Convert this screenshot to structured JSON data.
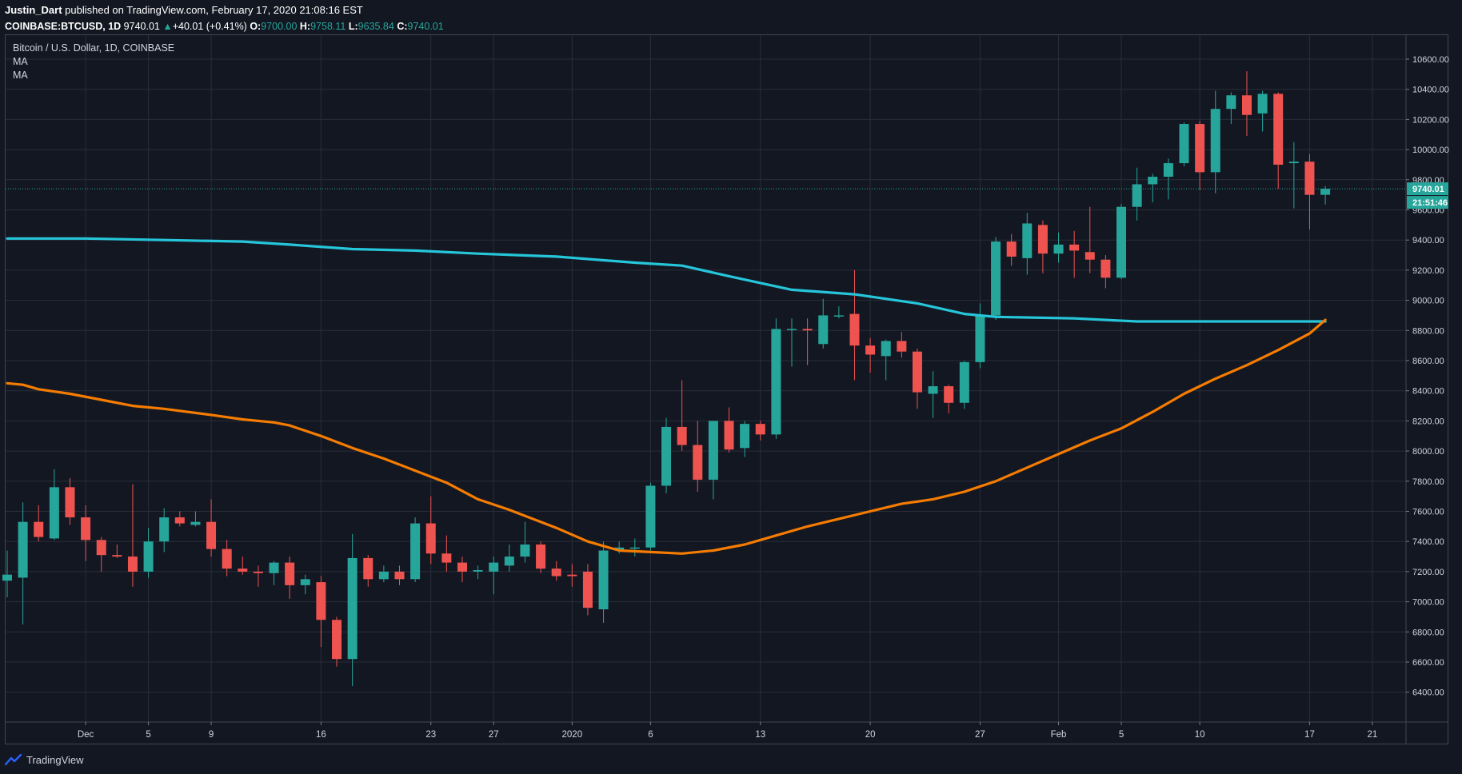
{
  "header": {
    "author": "Justin_Dart",
    "published_text": "published on TradingView.com, February 17, 2020 21:08:16 EST",
    "symbol": "COINBASE:BTCUSD",
    "interval": "1D",
    "last_price": "9740.01",
    "change_arrow": "▲",
    "change": "+40.01 (+0.41%)",
    "open_label": "O:",
    "open": "9700.00",
    "high_label": "H:",
    "high": "9758.11",
    "low_label": "L:",
    "low": "9635.84",
    "close_label": "C:",
    "close": "9740.01"
  },
  "legend": {
    "title": "Bitcoin / U.S. Dollar, 1D, COINBASE",
    "ma1": "MA",
    "ma2": "MA"
  },
  "footer": {
    "brand": "TradingView"
  },
  "colors": {
    "background": "#131722",
    "grid": "#2a2e39",
    "up": "#26a69a",
    "down": "#ef5350",
    "ma_slow": "#26c6da",
    "ma_fast": "#f57c00"
  },
  "chart_data": {
    "type": "candlestick",
    "symbol": "COINBASE:BTCUSD",
    "interval": "1D",
    "title": "Bitcoin / U.S. Dollar, 1D, COINBASE",
    "ylim": [
      6260,
      10700
    ],
    "y_ticks": [
      6400,
      6600,
      6800,
      7000,
      7200,
      7400,
      7600,
      7800,
      8000,
      8200,
      8400,
      8600,
      8800,
      9000,
      9200,
      9400,
      9600,
      9800,
      10000,
      10200,
      10400,
      10600
    ],
    "x_ticks": [
      {
        "label": "Dec",
        "index": 5
      },
      {
        "label": "5",
        "index": 9
      },
      {
        "label": "9",
        "index": 13
      },
      {
        "label": "16",
        "index": 20
      },
      {
        "label": "23",
        "index": 27
      },
      {
        "label": "27",
        "index": 31
      },
      {
        "label": "2020",
        "index": 36
      },
      {
        "label": "6",
        "index": 41
      },
      {
        "label": "13",
        "index": 48
      },
      {
        "label": "20",
        "index": 55
      },
      {
        "label": "27",
        "index": 62
      },
      {
        "label": "Feb",
        "index": 67
      },
      {
        "label": "5",
        "index": 71
      },
      {
        "label": "10",
        "index": 76
      },
      {
        "label": "17",
        "index": 83
      },
      {
        "label": "21",
        "index": 87
      }
    ],
    "last_price_label": "9740.01",
    "countdown_label": "21:51:46",
    "last_price": 9740.01,
    "candles": [
      {
        "o": 7140,
        "h": 7340,
        "l": 7030,
        "c": 7180
      },
      {
        "o": 7160,
        "h": 7660,
        "l": 6850,
        "c": 7530
      },
      {
        "o": 7530,
        "h": 7640,
        "l": 7400,
        "c": 7430
      },
      {
        "o": 7420,
        "h": 7880,
        "l": 7410,
        "c": 7760
      },
      {
        "o": 7760,
        "h": 7820,
        "l": 7510,
        "c": 7560
      },
      {
        "o": 7560,
        "h": 7640,
        "l": 7270,
        "c": 7410
      },
      {
        "o": 7410,
        "h": 7430,
        "l": 7200,
        "c": 7310
      },
      {
        "o": 7310,
        "h": 7380,
        "l": 7290,
        "c": 7300
      },
      {
        "o": 7300,
        "h": 7780,
        "l": 7100,
        "c": 7200
      },
      {
        "o": 7200,
        "h": 7490,
        "l": 7160,
        "c": 7400
      },
      {
        "o": 7400,
        "h": 7620,
        "l": 7330,
        "c": 7560
      },
      {
        "o": 7560,
        "h": 7600,
        "l": 7500,
        "c": 7520
      },
      {
        "o": 7510,
        "h": 7600,
        "l": 7500,
        "c": 7530
      },
      {
        "o": 7530,
        "h": 7680,
        "l": 7300,
        "c": 7350
      },
      {
        "o": 7350,
        "h": 7410,
        "l": 7170,
        "c": 7220
      },
      {
        "o": 7220,
        "h": 7300,
        "l": 7180,
        "c": 7200
      },
      {
        "o": 7200,
        "h": 7240,
        "l": 7100,
        "c": 7190
      },
      {
        "o": 7190,
        "h": 7270,
        "l": 7110,
        "c": 7260
      },
      {
        "o": 7260,
        "h": 7300,
        "l": 7020,
        "c": 7110
      },
      {
        "o": 7110,
        "h": 7180,
        "l": 7050,
        "c": 7150
      },
      {
        "o": 7130,
        "h": 7170,
        "l": 6700,
        "c": 6880
      },
      {
        "o": 6880,
        "h": 6900,
        "l": 6570,
        "c": 6620
      },
      {
        "o": 6620,
        "h": 7450,
        "l": 6440,
        "c": 7290
      },
      {
        "o": 7290,
        "h": 7310,
        "l": 7100,
        "c": 7150
      },
      {
        "o": 7150,
        "h": 7240,
        "l": 7130,
        "c": 7200
      },
      {
        "o": 7200,
        "h": 7240,
        "l": 7110,
        "c": 7150
      },
      {
        "o": 7150,
        "h": 7560,
        "l": 7130,
        "c": 7520
      },
      {
        "o": 7520,
        "h": 7700,
        "l": 7250,
        "c": 7320
      },
      {
        "o": 7320,
        "h": 7440,
        "l": 7200,
        "c": 7260
      },
      {
        "o": 7260,
        "h": 7300,
        "l": 7130,
        "c": 7200
      },
      {
        "o": 7200,
        "h": 7240,
        "l": 7150,
        "c": 7210
      },
      {
        "o": 7200,
        "h": 7300,
        "l": 7050,
        "c": 7260
      },
      {
        "o": 7240,
        "h": 7380,
        "l": 7200,
        "c": 7300
      },
      {
        "o": 7300,
        "h": 7530,
        "l": 7260,
        "c": 7380
      },
      {
        "o": 7380,
        "h": 7400,
        "l": 7190,
        "c": 7220
      },
      {
        "o": 7220,
        "h": 7270,
        "l": 7140,
        "c": 7170
      },
      {
        "o": 7180,
        "h": 7250,
        "l": 7100,
        "c": 7170
      },
      {
        "o": 7200,
        "h": 7250,
        "l": 6910,
        "c": 6960
      },
      {
        "o": 6950,
        "h": 7400,
        "l": 6860,
        "c": 7340
      },
      {
        "o": 7340,
        "h": 7400,
        "l": 7320,
        "c": 7360
      },
      {
        "o": 7360,
        "h": 7420,
        "l": 7300,
        "c": 7360
      },
      {
        "o": 7360,
        "h": 7790,
        "l": 7340,
        "c": 7770
      },
      {
        "o": 7770,
        "h": 8220,
        "l": 7720,
        "c": 8160
      },
      {
        "o": 8160,
        "h": 8470,
        "l": 8000,
        "c": 8040
      },
      {
        "o": 8040,
        "h": 8200,
        "l": 7730,
        "c": 7810
      },
      {
        "o": 7810,
        "h": 8200,
        "l": 7680,
        "c": 8200
      },
      {
        "o": 8200,
        "h": 8290,
        "l": 7990,
        "c": 8010
      },
      {
        "o": 8020,
        "h": 8200,
        "l": 7960,
        "c": 8180
      },
      {
        "o": 8180,
        "h": 8200,
        "l": 8070,
        "c": 8110
      },
      {
        "o": 8110,
        "h": 8880,
        "l": 8080,
        "c": 8810
      },
      {
        "o": 8810,
        "h": 8880,
        "l": 8560,
        "c": 8810
      },
      {
        "o": 8810,
        "h": 8880,
        "l": 8570,
        "c": 8800
      },
      {
        "o": 8710,
        "h": 9010,
        "l": 8680,
        "c": 8900
      },
      {
        "o": 8900,
        "h": 8960,
        "l": 8880,
        "c": 8900
      },
      {
        "o": 8910,
        "h": 9200,
        "l": 8470,
        "c": 8700
      },
      {
        "o": 8700,
        "h": 8750,
        "l": 8520,
        "c": 8640
      },
      {
        "o": 8630,
        "h": 8740,
        "l": 8470,
        "c": 8730
      },
      {
        "o": 8730,
        "h": 8790,
        "l": 8620,
        "c": 8660
      },
      {
        "o": 8660,
        "h": 8680,
        "l": 8280,
        "c": 8390
      },
      {
        "o": 8380,
        "h": 8530,
        "l": 8220,
        "c": 8430
      },
      {
        "o": 8430,
        "h": 8440,
        "l": 8250,
        "c": 8320
      },
      {
        "o": 8320,
        "h": 8600,
        "l": 8280,
        "c": 8590
      },
      {
        "o": 8590,
        "h": 8980,
        "l": 8550,
        "c": 8900
      },
      {
        "o": 8900,
        "h": 9420,
        "l": 8870,
        "c": 9390
      },
      {
        "o": 9390,
        "h": 9440,
        "l": 9230,
        "c": 9290
      },
      {
        "o": 9280,
        "h": 9580,
        "l": 9170,
        "c": 9510
      },
      {
        "o": 9500,
        "h": 9530,
        "l": 9180,
        "c": 9310
      },
      {
        "o": 9310,
        "h": 9450,
        "l": 9250,
        "c": 9370
      },
      {
        "o": 9370,
        "h": 9460,
        "l": 9150,
        "c": 9330
      },
      {
        "o": 9320,
        "h": 9620,
        "l": 9180,
        "c": 9270
      },
      {
        "o": 9270,
        "h": 9300,
        "l": 9080,
        "c": 9150
      },
      {
        "o": 9150,
        "h": 9640,
        "l": 9140,
        "c": 9620
      },
      {
        "o": 9620,
        "h": 9880,
        "l": 9530,
        "c": 9770
      },
      {
        "o": 9770,
        "h": 9840,
        "l": 9650,
        "c": 9820
      },
      {
        "o": 9820,
        "h": 9940,
        "l": 9670,
        "c": 9910
      },
      {
        "o": 9910,
        "h": 10180,
        "l": 9890,
        "c": 10170
      },
      {
        "o": 10170,
        "h": 10190,
        "l": 9730,
        "c": 9850
      },
      {
        "o": 9850,
        "h": 10390,
        "l": 9710,
        "c": 10270
      },
      {
        "o": 10270,
        "h": 10380,
        "l": 10170,
        "c": 10360
      },
      {
        "o": 10360,
        "h": 10520,
        "l": 10090,
        "c": 10230
      },
      {
        "o": 10240,
        "h": 10390,
        "l": 10120,
        "c": 10370
      },
      {
        "o": 10370,
        "h": 10380,
        "l": 9740,
        "c": 9900
      },
      {
        "o": 9910,
        "h": 10050,
        "l": 9610,
        "c": 9920
      },
      {
        "o": 9920,
        "h": 9970,
        "l": 9470,
        "c": 9700
      },
      {
        "o": 9700,
        "h": 9758.11,
        "l": 9635.84,
        "c": 9740.01
      }
    ],
    "series": [
      {
        "type": "line",
        "color": "#26c6da",
        "points": [
          [
            0,
            9410
          ],
          [
            5,
            9410
          ],
          [
            10,
            9400
          ],
          [
            15,
            9390
          ],
          [
            18,
            9370
          ],
          [
            22,
            9340
          ],
          [
            26,
            9330
          ],
          [
            30,
            9310
          ],
          [
            35,
            9290
          ],
          [
            40,
            9250
          ],
          [
            43,
            9230
          ],
          [
            46,
            9160
          ],
          [
            50,
            9070
          ],
          [
            54,
            9040
          ],
          [
            58,
            8980
          ],
          [
            61,
            8910
          ],
          [
            63,
            8890
          ],
          [
            68,
            8880
          ],
          [
            72,
            8860
          ],
          [
            76,
            8860
          ],
          [
            80,
            8860
          ],
          [
            84,
            8860
          ]
        ]
      },
      {
        "type": "line",
        "color": "#f57c00",
        "points": [
          [
            0,
            8450
          ],
          [
            1,
            8440
          ],
          [
            2,
            8410
          ],
          [
            4,
            8380
          ],
          [
            6,
            8340
          ],
          [
            8,
            8300
          ],
          [
            10,
            8280
          ],
          [
            13,
            8240
          ],
          [
            15,
            8210
          ],
          [
            17,
            8190
          ],
          [
            18,
            8170
          ],
          [
            20,
            8100
          ],
          [
            22,
            8020
          ],
          [
            24,
            7950
          ],
          [
            26,
            7870
          ],
          [
            28,
            7790
          ],
          [
            30,
            7680
          ],
          [
            32,
            7610
          ],
          [
            35,
            7490
          ],
          [
            37,
            7400
          ],
          [
            39,
            7340
          ],
          [
            41,
            7330
          ],
          [
            43,
            7320
          ],
          [
            45,
            7340
          ],
          [
            47,
            7380
          ],
          [
            49,
            7440
          ],
          [
            51,
            7500
          ],
          [
            53,
            7550
          ],
          [
            55,
            7600
          ],
          [
            57,
            7650
          ],
          [
            59,
            7680
          ],
          [
            61,
            7730
          ],
          [
            63,
            7800
          ],
          [
            65,
            7890
          ],
          [
            67,
            7980
          ],
          [
            69,
            8070
          ],
          [
            71,
            8150
          ],
          [
            73,
            8260
          ],
          [
            75,
            8380
          ],
          [
            77,
            8480
          ],
          [
            79,
            8570
          ],
          [
            81,
            8670
          ],
          [
            83,
            8780
          ],
          [
            84,
            8870
          ]
        ]
      }
    ]
  }
}
